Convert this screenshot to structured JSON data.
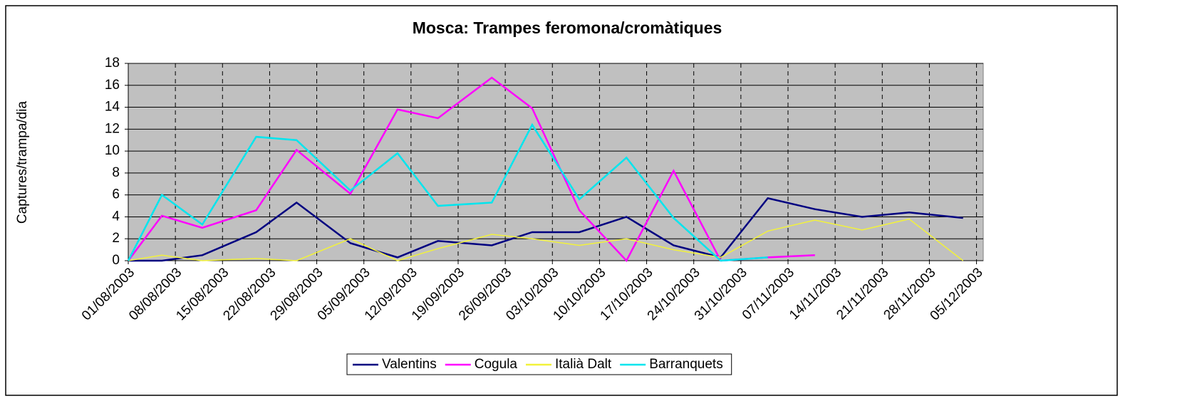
{
  "chart_data": {
    "type": "line",
    "title": "Mosca: Trampes feromona/cromàtiques",
    "y_label": "Captures/trampa/dia",
    "x": [
      "2003-08-01",
      "2003-08-06",
      "2003-08-12",
      "2003-08-20",
      "2003-08-26",
      "2003-09-03",
      "2003-09-10",
      "2003-09-16",
      "2003-09-24",
      "2003-09-30",
      "2003-10-07",
      "2003-10-14",
      "2003-10-21",
      "2003-10-28",
      "2003-11-04",
      "2003-11-11",
      "2003-11-18",
      "2003-11-25",
      "2003-12-03"
    ],
    "series": [
      {
        "name": "Valentins",
        "color": "#000080",
        "values": [
          0,
          0,
          0.5,
          2.6,
          5.3,
          1.6,
          0.3,
          1.8,
          1.4,
          2.6,
          2.6,
          4.0,
          1.4,
          0.3,
          5.7,
          4.7,
          4.0,
          4.4,
          3.9
        ]
      },
      {
        "name": "Cogula",
        "color": "#ff00ff",
        "values": [
          0,
          4.1,
          3.0,
          4.6,
          10.1,
          6.1,
          13.8,
          13.0,
          16.7,
          13.9,
          4.6,
          0,
          8.2,
          0,
          0.3,
          0.5,
          null,
          null,
          null
        ]
      },
      {
        "name": "Italià Dalt",
        "color": "#f2f23a",
        "values": [
          0,
          0.5,
          0,
          0.2,
          0,
          2.0,
          0,
          1.1,
          2.4,
          2.0,
          1.4,
          2.0,
          1.0,
          0.3,
          2.7,
          3.7,
          2.8,
          3.8,
          0
        ]
      },
      {
        "name": "Barranquets",
        "color": "#00e5ee",
        "values": [
          0,
          6.0,
          3.3,
          11.3,
          11.0,
          6.4,
          9.8,
          5.0,
          5.3,
          12.4,
          5.6,
          9.4,
          3.9,
          0,
          0.3,
          null,
          null,
          null,
          null
        ]
      }
    ],
    "xlim": [
      "2003-08-01",
      "2003-12-06"
    ],
    "xticks": [
      {
        "value": "2003-08-01",
        "label": "01/08/2003"
      },
      {
        "value": "2003-08-08",
        "label": "08/08/2003"
      },
      {
        "value": "2003-08-15",
        "label": "15/08/2003"
      },
      {
        "value": "2003-08-22",
        "label": "22/08/2003"
      },
      {
        "value": "2003-08-29",
        "label": "29/08/2003"
      },
      {
        "value": "2003-09-05",
        "label": "05/09/2003"
      },
      {
        "value": "2003-09-12",
        "label": "12/09/2003"
      },
      {
        "value": "2003-09-19",
        "label": "19/09/2003"
      },
      {
        "value": "2003-09-26",
        "label": "26/09/2003"
      },
      {
        "value": "2003-10-03",
        "label": "03/10/2003"
      },
      {
        "value": "2003-10-10",
        "label": "10/10/2003"
      },
      {
        "value": "2003-10-17",
        "label": "17/10/2003"
      },
      {
        "value": "2003-10-24",
        "label": "24/10/2003"
      },
      {
        "value": "2003-10-31",
        "label": "31/10/2003"
      },
      {
        "value": "2003-11-07",
        "label": "07/11/2003"
      },
      {
        "value": "2003-11-14",
        "label": "14/11/2003"
      },
      {
        "value": "2003-11-21",
        "label": "21/11/2003"
      },
      {
        "value": "2003-11-28",
        "label": "28/11/2003"
      },
      {
        "value": "2003-12-05",
        "label": "05/12/2003"
      }
    ],
    "ylim": [
      0,
      18
    ],
    "yticks": [
      0,
      2,
      4,
      6,
      8,
      10,
      12,
      14,
      16,
      18
    ],
    "grid": true,
    "legend": "bottom"
  }
}
